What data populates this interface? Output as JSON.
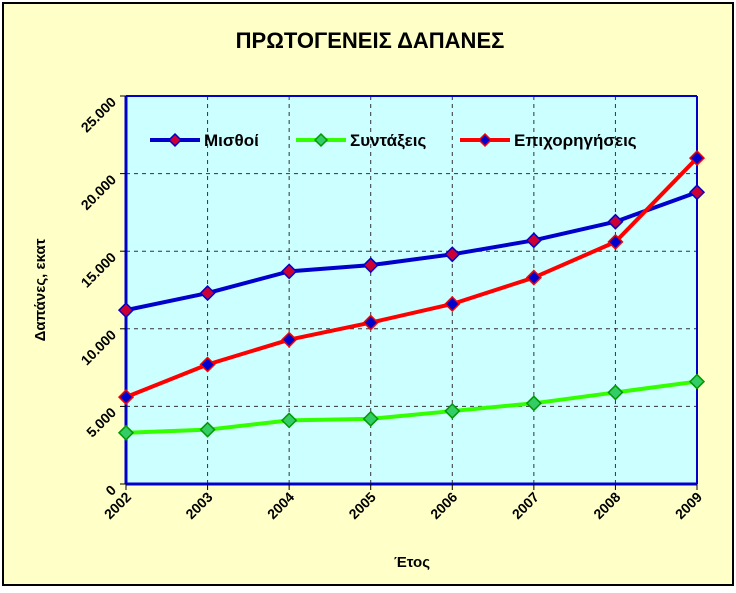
{
  "chart_data": {
    "type": "line",
    "title": "ΠΡΩΤΟΓΕΝΕΙΣ ΔΑΠΑΝΕΣ",
    "xlabel": "Έτος",
    "ylabel": "Δαπάνες, εκατ",
    "x": [
      "2002",
      "2003",
      "2004",
      "2005",
      "2006",
      "2007",
      "2008",
      "2009"
    ],
    "ylim": [
      0,
      25000
    ],
    "yticks": [
      0,
      5000,
      10000,
      15000,
      20000,
      25000
    ],
    "ytick_labels": [
      "0",
      "5.000",
      "10.000",
      "15.000",
      "20.000",
      "25.000"
    ],
    "grid": true,
    "legend": "top",
    "series": [
      {
        "name": "Μισθοί",
        "color": "#0000cc",
        "marker_color": "#cc0033",
        "values": [
          11200,
          12300,
          13700,
          14100,
          14800,
          15700,
          16900,
          18800
        ]
      },
      {
        "name": "Συντάξεις",
        "color": "#33ff00",
        "marker_color": "#33cc66",
        "values": [
          3300,
          3500,
          4100,
          4200,
          4700,
          5200,
          5900,
          6600
        ]
      },
      {
        "name": "Επιχορηγήσεις",
        "color": "#ff0000",
        "marker_color": "#0000cc",
        "values": [
          5600,
          7700,
          9300,
          10400,
          11600,
          13300,
          15600,
          21000
        ]
      }
    ]
  },
  "colors": {
    "background": "#ffffc8",
    "plot_area": "#ccffff",
    "axis": "#0000cc"
  }
}
